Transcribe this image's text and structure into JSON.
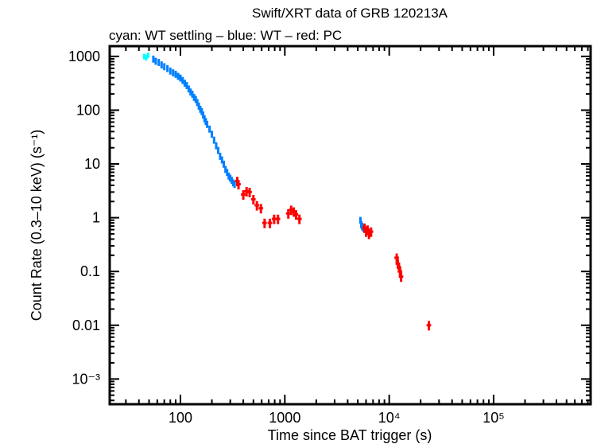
{
  "chart_data": {
    "type": "scatter",
    "title": "Swift/XRT data of GRB 120213A",
    "subtitle": "cyan: WT settling – blue: WT – red: PC",
    "xlabel": "Time since BAT trigger (s)",
    "ylabel": "Count Rate (0.3–10 keV) (s⁻¹)",
    "x_scale": "log",
    "y_scale": "log",
    "xlim": [
      21,
      850000
    ],
    "ylim": [
      0.00034,
      1550
    ],
    "grid": false,
    "x_ticks": [
      {
        "value": 100,
        "label": "100"
      },
      {
        "value": 1000,
        "label": "1000"
      },
      {
        "value": 10000,
        "label": "10⁴"
      },
      {
        "value": 100000,
        "label": "10⁵"
      }
    ],
    "y_ticks": [
      {
        "value": 1000,
        "label": "1000"
      },
      {
        "value": 100,
        "label": "100"
      },
      {
        "value": 10,
        "label": "10"
      },
      {
        "value": 1,
        "label": "1"
      },
      {
        "value": 0.1,
        "label": "0.1"
      },
      {
        "value": 0.01,
        "label": "0.01"
      },
      {
        "value": 0.001,
        "label": "10⁻³"
      }
    ],
    "series": [
      {
        "mode": "WT settling",
        "color": "#00ffff",
        "x_err_frac": 0.03,
        "y_err_frac": 0.12,
        "points": [
          [
            45,
            1000
          ],
          [
            47,
            950
          ],
          [
            49,
            1050
          ]
        ]
      },
      {
        "mode": "WT",
        "color": "#0080ff",
        "x_err_frac": 0.02,
        "y_err_frac": 0.15,
        "points": [
          [
            55,
            900
          ],
          [
            58,
            820
          ],
          [
            62,
            780
          ],
          [
            66,
            700
          ],
          [
            70,
            650
          ],
          [
            75,
            600
          ],
          [
            80,
            540
          ],
          [
            85,
            500
          ],
          [
            90,
            470
          ],
          [
            95,
            430
          ],
          [
            100,
            400
          ],
          [
            105,
            360
          ],
          [
            110,
            320
          ],
          [
            115,
            290
          ],
          [
            120,
            250
          ],
          [
            125,
            220
          ],
          [
            130,
            200
          ],
          [
            135,
            175
          ],
          [
            140,
            160
          ],
          [
            145,
            140
          ],
          [
            150,
            120
          ],
          [
            155,
            105
          ],
          [
            160,
            95
          ],
          [
            165,
            82
          ],
          [
            170,
            70
          ],
          [
            175,
            62
          ],
          [
            180,
            55
          ],
          [
            190,
            45
          ],
          [
            200,
            36
          ],
          [
            210,
            28
          ],
          [
            220,
            22
          ],
          [
            230,
            18
          ],
          [
            240,
            14
          ],
          [
            250,
            12
          ],
          [
            260,
            10
          ],
          [
            270,
            8
          ],
          [
            280,
            7
          ],
          [
            290,
            6
          ],
          [
            300,
            5.5
          ],
          [
            310,
            5
          ],
          [
            320,
            4.5
          ],
          [
            330,
            4.2
          ],
          [
            5300,
            0.9
          ],
          [
            5400,
            0.75
          ],
          [
            5500,
            0.7
          ],
          [
            5600,
            0.65
          ]
        ]
      },
      {
        "mode": "PC",
        "color": "#ff0000",
        "x_err_frac": 0.05,
        "y_err_frac": 0.2,
        "points": [
          [
            350,
            4.8
          ],
          [
            360,
            4.2
          ],
          [
            400,
            2.7
          ],
          [
            430,
            3.1
          ],
          [
            460,
            3
          ],
          [
            500,
            2.2
          ],
          [
            540,
            1.7
          ],
          [
            590,
            1.5
          ],
          [
            640,
            0.8
          ],
          [
            720,
            0.8
          ],
          [
            790,
            0.95
          ],
          [
            860,
            0.95
          ],
          [
            1080,
            1.2
          ],
          [
            1150,
            1.4
          ],
          [
            1220,
            1.3
          ],
          [
            1280,
            1.15
          ],
          [
            1380,
            0.95
          ],
          [
            5800,
            0.65
          ],
          [
            6000,
            0.55
          ],
          [
            6200,
            0.6
          ],
          [
            6400,
            0.5
          ],
          [
            6700,
            0.55
          ],
          [
            11800,
            0.18
          ],
          [
            12100,
            0.14
          ],
          [
            12400,
            0.12
          ],
          [
            12700,
            0.1
          ],
          [
            13000,
            0.08
          ],
          [
            24000,
            0.01
          ]
        ]
      }
    ]
  }
}
